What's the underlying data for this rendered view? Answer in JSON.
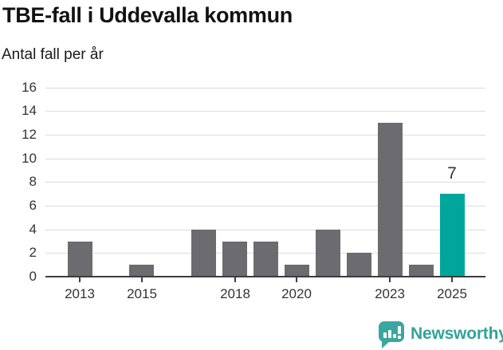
{
  "header": {
    "title": "TBE-fall i Uddevalla kommun",
    "subtitle": "Antal fall per år"
  },
  "chart_data": {
    "type": "bar",
    "title": "TBE-fall i Uddevalla kommun",
    "subtitle": "Antal fall per år",
    "categories": [
      "2013",
      "2014",
      "2015",
      "2016",
      "2017",
      "2018",
      "2019",
      "2020",
      "2021",
      "2022",
      "2023",
      "2024",
      "2025"
    ],
    "values": [
      3,
      0,
      1,
      0,
      4,
      3,
      3,
      1,
      4,
      2,
      13,
      1,
      7
    ],
    "highlight_index": 12,
    "highlight_label": "7",
    "x_tick_labels": [
      "2013",
      "2015",
      "2018",
      "2020",
      "2023",
      "2025"
    ],
    "y_ticks": [
      0,
      2,
      4,
      6,
      8,
      10,
      12,
      14,
      16
    ],
    "ylim": [
      0,
      16
    ],
    "grid": "horizontal-only",
    "legend": "none",
    "colors": {
      "bar": "#6b6b70",
      "highlight": "#00a69b",
      "gridline": "#dcdcdc",
      "axis": "#3d3d3d",
      "axis_text": "#333333"
    }
  },
  "footer": {
    "brand": "Newsworthy",
    "brand_color": "#2fa49b",
    "icon": "newsworthy-chart-bubble-icon"
  }
}
